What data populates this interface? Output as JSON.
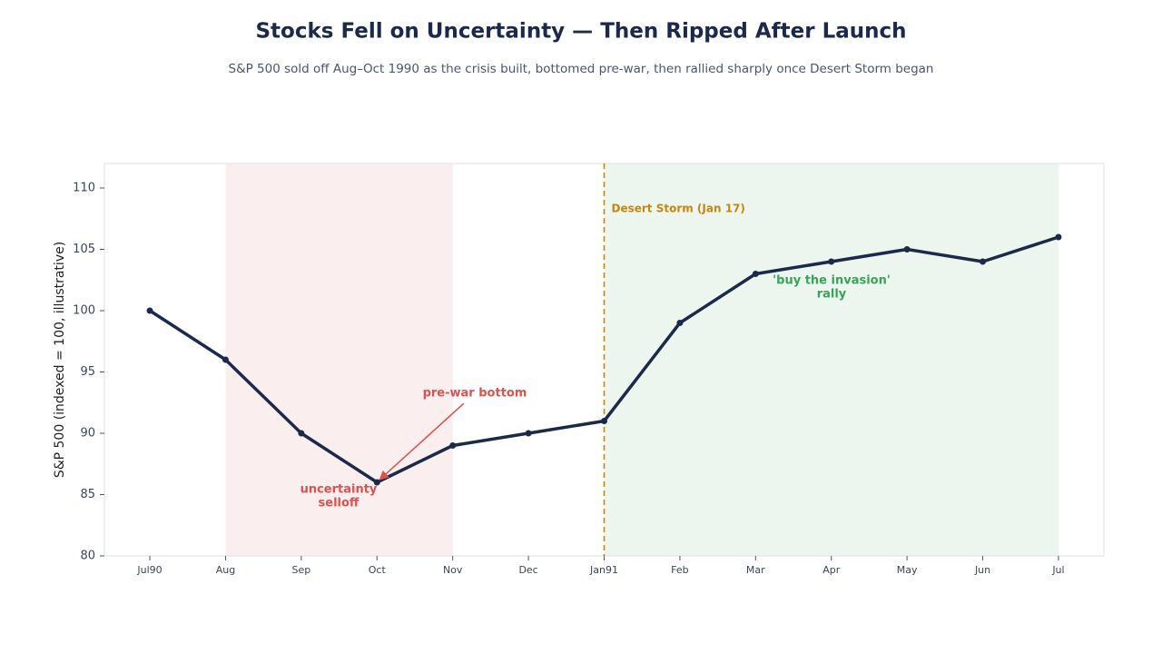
{
  "chart_data": {
    "type": "line",
    "title": "Stocks Fell on Uncertainty — Then Ripped After Launch",
    "subtitle": "S&P 500 sold off Aug–Oct 1990 as the crisis built, bottomed pre-war, then rallied sharply once Desert Storm began",
    "y_label": "S&P 500 (indexed = 100, illustrative)",
    "categories": [
      "Jul90",
      "Aug",
      "Sep",
      "Oct",
      "Nov",
      "Dec",
      "Jan91",
      "Feb",
      "Mar",
      "Apr",
      "May",
      "Jun",
      "Jul"
    ],
    "series": [
      {
        "name": "S&P 500",
        "color": "#1b2a4a",
        "values": [
          100,
          96,
          90,
          86,
          89,
          90,
          91,
          99,
          103,
          104,
          105,
          104,
          106
        ]
      }
    ],
    "ylim": [
      80,
      112
    ],
    "yticks": [
      80,
      85,
      90,
      95,
      100,
      105,
      110
    ],
    "grid": false,
    "shaded": [
      {
        "from": "Aug",
        "to": "Nov",
        "color": "#fbeeee"
      },
      {
        "from": "Jan91",
        "to": "Jul",
        "color": "#ecf6ef"
      }
    ],
    "event": {
      "x": "Jan91",
      "label": "Desert Storm (Jan 17)",
      "color": "#c8860a"
    },
    "annotations": [
      {
        "lines": [
          "pre-war bottom"
        ],
        "color": "#d9534f"
      },
      {
        "lines": [
          "uncertainty",
          "selloff"
        ],
        "color": "#d9534f"
      },
      {
        "lines": [
          "'buy the invasion'",
          "rally"
        ],
        "color": "#3aa35a"
      }
    ]
  }
}
